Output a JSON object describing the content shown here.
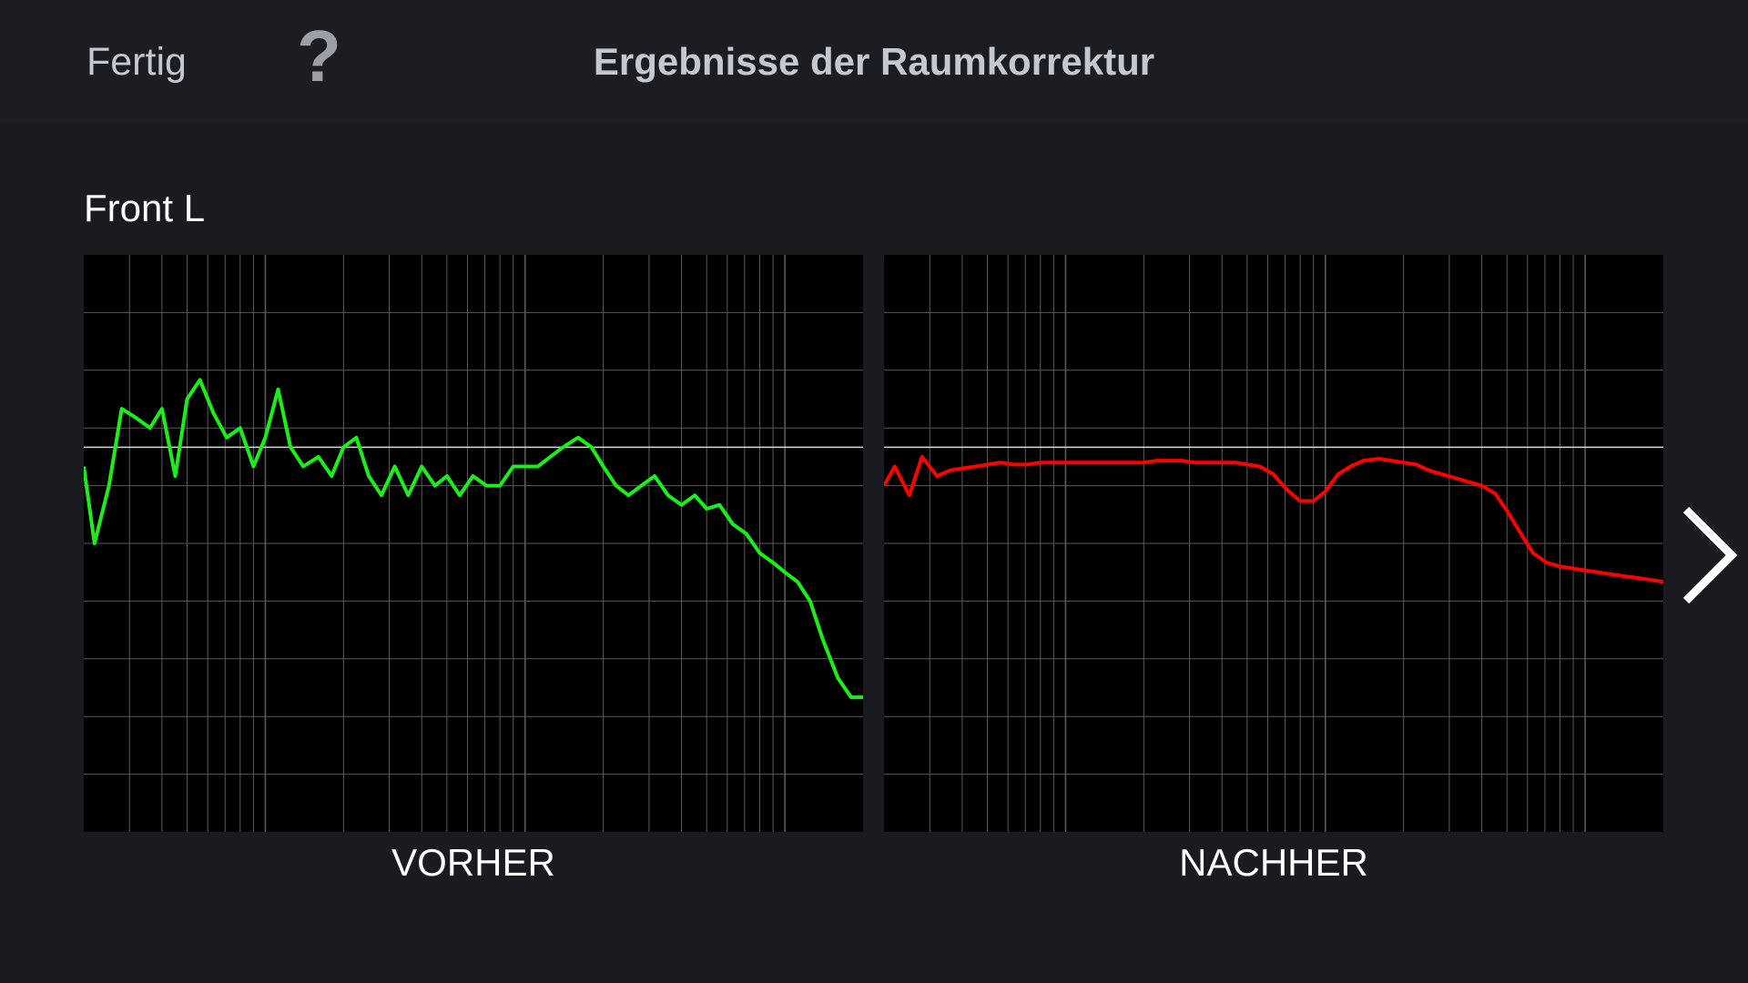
{
  "header": {
    "done_label": "Fertig",
    "help_label": "?",
    "title": "Ergebnisse der Raumkorrektur"
  },
  "channel": {
    "name": "Front L"
  },
  "panels": {
    "before_label": "VORHER",
    "after_label": "NACHHER"
  },
  "icons": {
    "next": "chevron-right-icon"
  },
  "colors": {
    "before_curve": "#18f018",
    "after_curve": "#ff0000",
    "grid": "#5a5a5a",
    "reference_line": "#d8d8d8",
    "plot_background": "#000000"
  },
  "chart_data": [
    {
      "type": "line",
      "name": "before",
      "xscale": "log",
      "xlim": [
        20,
        20000
      ],
      "ylim": [
        -20,
        10
      ],
      "grid": true,
      "x": [
        20,
        22,
        25,
        28,
        32,
        36,
        40,
        45,
        50,
        56,
        63,
        71,
        80,
        90,
        100,
        112,
        125,
        140,
        160,
        180,
        200,
        224,
        250,
        280,
        315,
        355,
        400,
        450,
        500,
        560,
        630,
        710,
        800,
        900,
        1000,
        1120,
        1250,
        1400,
        1600,
        1800,
        2000,
        2240,
        2500,
        2800,
        3150,
        3550,
        4000,
        4500,
        5000,
        5600,
        6300,
        7100,
        8000,
        9000,
        10000,
        11200,
        12500,
        14000,
        16000,
        18000,
        20000
      ],
      "y": [
        -1,
        -5,
        -2,
        2,
        1.5,
        1,
        2,
        -1.5,
        2.5,
        3.5,
        1.8,
        0.5,
        1,
        -1,
        0.5,
        3,
        0,
        -1,
        -0.5,
        -1.5,
        0,
        0.5,
        -1.5,
        -2.5,
        -1,
        -2.5,
        -1,
        -2,
        -1.5,
        -2.5,
        -1.5,
        -2,
        -2,
        -1,
        -1,
        -1,
        -0.5,
        0,
        0.5,
        0,
        -1,
        -2,
        -2.5,
        -2,
        -1.5,
        -2.5,
        -3,
        -2.5,
        -3.2,
        -3,
        -4,
        -4.5,
        -5.5,
        -6,
        -6.5,
        -7,
        -8,
        -10,
        -12,
        -13,
        -13
      ],
      "reference_y": 0
    },
    {
      "type": "line",
      "name": "after",
      "xscale": "log",
      "xlim": [
        20,
        20000
      ],
      "ylim": [
        -20,
        10
      ],
      "grid": true,
      "x": [
        20,
        22,
        25,
        28,
        32,
        36,
        40,
        45,
        50,
        56,
        63,
        71,
        80,
        90,
        100,
        112,
        125,
        140,
        160,
        180,
        200,
        224,
        250,
        280,
        315,
        355,
        400,
        450,
        500,
        560,
        630,
        710,
        800,
        900,
        1000,
        1120,
        1250,
        1400,
        1600,
        1800,
        2000,
        2240,
        2500,
        2800,
        3150,
        3550,
        4000,
        4500,
        5000,
        5600,
        6300,
        7100,
        8000,
        9000,
        10000,
        11200,
        12500,
        14000,
        16000,
        18000,
        20000
      ],
      "y": [
        -2,
        -1,
        -2.5,
        -0.5,
        -1.5,
        -1.2,
        -1.1,
        -1,
        -0.9,
        -0.8,
        -0.9,
        -0.9,
        -0.8,
        -0.8,
        -0.8,
        -0.8,
        -0.8,
        -0.8,
        -0.8,
        -0.8,
        -0.8,
        -0.7,
        -0.7,
        -0.7,
        -0.8,
        -0.8,
        -0.8,
        -0.8,
        -0.9,
        -1,
        -1.4,
        -2.2,
        -2.8,
        -2.8,
        -2.3,
        -1.4,
        -1,
        -0.7,
        -0.6,
        -0.7,
        -0.8,
        -0.9,
        -1.2,
        -1.4,
        -1.6,
        -1.8,
        -2,
        -2.4,
        -3.3,
        -4.4,
        -5.5,
        -6,
        -6.2,
        -6.3,
        -6.4,
        -6.5,
        -6.6,
        -6.7,
        -6.8,
        -6.9,
        -7
      ]
    }
  ]
}
